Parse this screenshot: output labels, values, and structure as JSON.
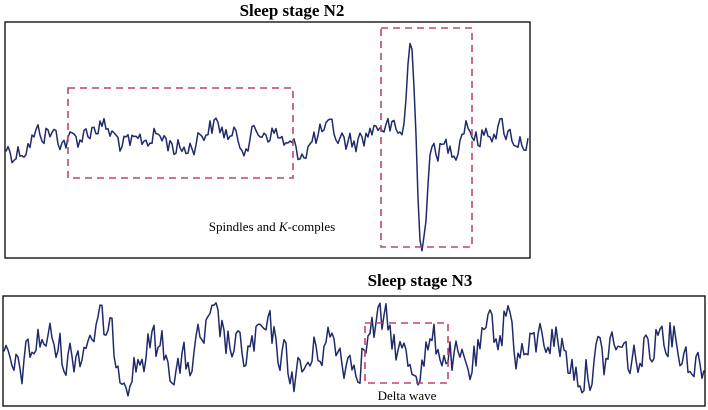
{
  "panels": [
    {
      "title": "Sleep stage N2",
      "annotation": {
        "parts": [
          "Spindles and ",
          "K",
          "-comples"
        ]
      }
    },
    {
      "title": "Sleep stage N3",
      "annotation": {
        "parts": [
          "Delta wave"
        ]
      }
    }
  ]
}
